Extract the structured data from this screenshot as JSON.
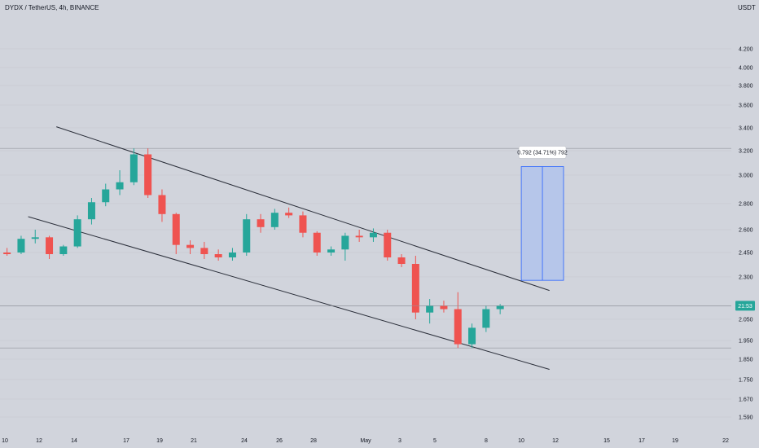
{
  "header": {
    "symbol_title": "DYDX / TetherUS, 4h, BINANCE",
    "currency": "USDT"
  },
  "colors": {
    "background": "#d1d4dc",
    "up": "#26a69a",
    "down": "#ef5350",
    "channel_line": "#2a2e39",
    "measure_fill": "#b2c3ec",
    "measure_border": "#2962ff",
    "last_price_bg": "#26a69a"
  },
  "chart_data": {
    "type": "candlestick",
    "price_axis_ticks": [
      "4.200",
      "4.000",
      "3.800",
      "3.600",
      "3.400",
      "3.200",
      "3.000",
      "2.800",
      "2.600",
      "2.450",
      "2.300",
      "2.050",
      "1.950",
      "1.850",
      "1.750",
      "1.670",
      "1.590"
    ],
    "date_axis_ticks": [
      "10",
      "12",
      "14",
      "17",
      "19",
      "21",
      "24",
      "26",
      "28",
      "May",
      "3",
      "5",
      "8",
      "10",
      "12",
      "15",
      "17",
      "19",
      "22"
    ],
    "last_price_label": "21:53",
    "channel": {
      "upper": [
        {
          "date": "2023-04-13",
          "price": 3.41
        },
        {
          "date": "2023-05-18",
          "price": 2.22
        }
      ],
      "lower": [
        {
          "date": "2023-04-11",
          "price": 2.7
        },
        {
          "date": "2023-05-18",
          "price": 1.8
        }
      ]
    },
    "measurement": {
      "label": "0.792 (34.71%) 792",
      "from_price": 2.28,
      "to_price": 3.07,
      "from_date": "2023-05-16",
      "to_date": "2023-05-19"
    },
    "horizontal_levels": [
      3.22,
      2.13,
      1.91
    ],
    "candles": [
      {
        "date": "2023-04-09",
        "o": 2.45,
        "h": 2.48,
        "l": 2.43,
        "c": 2.44
      },
      {
        "date": "2023-04-10",
        "o": 2.45,
        "h": 2.56,
        "l": 2.44,
        "c": 2.54
      },
      {
        "date": "2023-04-11",
        "o": 2.54,
        "h": 2.6,
        "l": 2.51,
        "c": 2.55
      },
      {
        "date": "2023-04-12",
        "o": 2.55,
        "h": 2.56,
        "l": 2.41,
        "c": 2.44
      },
      {
        "date": "2023-04-13",
        "o": 2.44,
        "h": 2.5,
        "l": 2.43,
        "c": 2.49
      },
      {
        "date": "2023-04-14",
        "o": 2.49,
        "h": 2.71,
        "l": 2.48,
        "c": 2.68
      },
      {
        "date": "2023-04-15",
        "o": 2.68,
        "h": 2.84,
        "l": 2.64,
        "c": 2.81
      },
      {
        "date": "2023-04-16",
        "o": 2.81,
        "h": 2.94,
        "l": 2.78,
        "c": 2.9
      },
      {
        "date": "2023-04-17",
        "o": 2.9,
        "h": 3.04,
        "l": 2.86,
        "c": 2.95
      },
      {
        "date": "2023-04-18",
        "o": 2.95,
        "h": 3.22,
        "l": 2.93,
        "c": 3.17
      },
      {
        "date": "2023-04-19",
        "o": 3.17,
        "h": 3.22,
        "l": 2.84,
        "c": 2.86
      },
      {
        "date": "2023-04-20",
        "o": 2.86,
        "h": 2.9,
        "l": 2.66,
        "c": 2.72
      },
      {
        "date": "2023-04-21",
        "o": 2.72,
        "h": 2.73,
        "l": 2.44,
        "c": 2.5
      },
      {
        "date": "2023-04-22",
        "o": 2.5,
        "h": 2.53,
        "l": 2.44,
        "c": 2.48
      },
      {
        "date": "2023-04-23",
        "o": 2.48,
        "h": 2.52,
        "l": 2.41,
        "c": 2.44
      },
      {
        "date": "2023-04-24",
        "o": 2.44,
        "h": 2.47,
        "l": 2.4,
        "c": 2.42
      },
      {
        "date": "2023-04-25",
        "o": 2.42,
        "h": 2.48,
        "l": 2.4,
        "c": 2.45
      },
      {
        "date": "2023-04-26",
        "o": 2.45,
        "h": 2.72,
        "l": 2.43,
        "c": 2.68
      },
      {
        "date": "2023-04-27",
        "o": 2.68,
        "h": 2.72,
        "l": 2.58,
        "c": 2.62
      },
      {
        "date": "2023-04-28",
        "o": 2.62,
        "h": 2.76,
        "l": 2.6,
        "c": 2.73
      },
      {
        "date": "2023-04-29",
        "o": 2.73,
        "h": 2.77,
        "l": 2.69,
        "c": 2.71
      },
      {
        "date": "2023-04-30",
        "o": 2.71,
        "h": 2.74,
        "l": 2.55,
        "c": 2.58
      },
      {
        "date": "2023-05-01",
        "o": 2.58,
        "h": 2.59,
        "l": 2.43,
        "c": 2.45
      },
      {
        "date": "2023-05-02",
        "o": 2.45,
        "h": 2.49,
        "l": 2.43,
        "c": 2.47
      },
      {
        "date": "2023-05-03",
        "o": 2.47,
        "h": 2.58,
        "l": 2.4,
        "c": 2.56
      },
      {
        "date": "2023-05-04",
        "o": 2.56,
        "h": 2.6,
        "l": 2.52,
        "c": 2.55
      },
      {
        "date": "2023-05-05",
        "o": 2.55,
        "h": 2.61,
        "l": 2.52,
        "c": 2.58
      },
      {
        "date": "2023-05-06",
        "o": 2.58,
        "h": 2.6,
        "l": 2.4,
        "c": 2.42
      },
      {
        "date": "2023-05-07",
        "o": 2.42,
        "h": 2.44,
        "l": 2.36,
        "c": 2.38
      },
      {
        "date": "2023-05-08",
        "o": 2.38,
        "h": 2.43,
        "l": 2.05,
        "c": 2.09
      },
      {
        "date": "2023-05-09",
        "o": 2.09,
        "h": 2.17,
        "l": 2.03,
        "c": 2.13
      },
      {
        "date": "2023-05-10",
        "o": 2.13,
        "h": 2.16,
        "l": 2.09,
        "c": 2.11
      },
      {
        "date": "2023-05-11",
        "o": 2.11,
        "h": 2.21,
        "l": 1.91,
        "c": 1.93
      },
      {
        "date": "2023-05-12",
        "o": 1.93,
        "h": 2.03,
        "l": 1.91,
        "c": 2.01
      },
      {
        "date": "2023-05-13",
        "o": 2.01,
        "h": 2.13,
        "l": 1.99,
        "c": 2.11
      },
      {
        "date": "2023-05-14",
        "o": 2.11,
        "h": 2.14,
        "l": 2.08,
        "c": 2.13
      }
    ]
  }
}
